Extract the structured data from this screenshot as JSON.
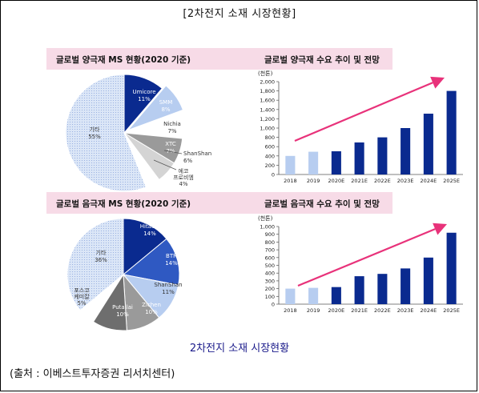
{
  "page": {
    "top_title": "[2차전지 소재 시장현황]",
    "caption": "2차전지 소재 시장현황",
    "source": "(출처 : 이베스트투자증권 리서치센터)"
  },
  "colors": {
    "band_bg": "#f7dbe7",
    "navy": "#0a2a8f",
    "light_blue": "#b7cdf0",
    "pale_blue": "#dbe6f7",
    "gray": "#9a9a9a",
    "dark_gray": "#6e6e6e",
    "arrow": "#e8327a",
    "caption_blue": "#1a1a8a"
  },
  "panels": {
    "cathode_share_title": "글로벌 양극재 MS 현황(2020 기준)",
    "cathode_demand_title": "글로벌 양극재 수요 추이 및 전망",
    "anode_share_title": "글로벌 음극재 MS 현황(2020 기준)",
    "anode_demand_title": "글로벌 음극재 수요 추이 및 전망"
  },
  "chart_data": [
    {
      "type": "pie",
      "id": "cathode-share",
      "title": "글로벌 양극재 MS 현황(2020 기준)",
      "slices": [
        {
          "label": "Umicore",
          "value": 11,
          "value_label": "11%",
          "fill": "#0a2a8f",
          "text_color": "#ffffff"
        },
        {
          "label": "SMM",
          "value": 8,
          "value_label": "8%",
          "fill": "#b7cdf0",
          "text_color": "#ffffff"
        },
        {
          "label": "Nichia",
          "value": 7,
          "value_label": "7%",
          "fill": "#ffffff",
          "text_color": "#333333"
        },
        {
          "label": "XTC",
          "value": 7,
          "value_label": "7%",
          "fill": "#9a9a9a",
          "text_color": "#ffffff"
        },
        {
          "label": "ShanShan",
          "value": 6,
          "value_label": "6%",
          "fill": "#d4d4d4",
          "text_color": "#333333"
        },
        {
          "label": "에코프로비엠",
          "value": 4,
          "value_label": "4%",
          "fill": "#ffffff",
          "text_color": "#333333"
        },
        {
          "label": "기타",
          "value": 55,
          "value_label": "55%",
          "fill": "#dbe6f7",
          "text_color": "#333333"
        }
      ]
    },
    {
      "type": "bar",
      "id": "cathode-demand",
      "title": "글로벌 양극재 수요 추이 및 전망",
      "unit_label": "(천톤)",
      "categories": [
        "2018",
        "2019",
        "2020E",
        "2021E",
        "2022E",
        "2023E",
        "2024E",
        "2025E"
      ],
      "values": [
        400,
        490,
        500,
        690,
        800,
        1000,
        1310,
        1800
      ],
      "ylim": [
        0,
        2000
      ],
      "yticks": [
        "0",
        "200",
        "400",
        "600",
        "800",
        "1,000",
        "1,200",
        "1,400",
        "1,600",
        "1,800",
        "2,000"
      ],
      "actual_count": 2,
      "grid": false
    },
    {
      "type": "pie",
      "id": "anode-share",
      "title": "글로벌 음극재 MS 현황(2020 기준)",
      "slices": [
        {
          "label": "Hitachi",
          "value": 14,
          "value_label": "14%",
          "fill": "#0a2a8f",
          "text_color": "#ffffff"
        },
        {
          "label": "BTR",
          "value": 14,
          "value_label": "14%",
          "fill": "#2f59c2",
          "text_color": "#ffffff"
        },
        {
          "label": "ShanShan",
          "value": 11,
          "value_label": "11%",
          "fill": "#b7cdf0",
          "text_color": "#333333"
        },
        {
          "label": "Zichen",
          "value": 10,
          "value_label": "10%",
          "fill": "#9a9a9a",
          "text_color": "#ffffff"
        },
        {
          "label": "Putailai",
          "value": 10,
          "value_label": "10%",
          "fill": "#6e6e6e",
          "text_color": "#ffffff"
        },
        {
          "label": "포스코케미칼",
          "value": 5,
          "value_label": "5%",
          "fill": "#ffffff",
          "text_color": "#333333"
        },
        {
          "label": "기타",
          "value": 36,
          "value_label": "36%",
          "fill": "#dbe6f7",
          "text_color": "#333333"
        }
      ]
    },
    {
      "type": "bar",
      "id": "anode-demand",
      "title": "글로벌 음극재 수요 추이 및 전망",
      "unit_label": "(천톤)",
      "categories": [
        "2018",
        "2019",
        "2020E",
        "2021E",
        "2022E",
        "2023E",
        "2024E",
        "2025E"
      ],
      "values": [
        200,
        210,
        220,
        360,
        390,
        460,
        600,
        920
      ],
      "ylim": [
        0,
        1000
      ],
      "yticks": [
        "0",
        "100",
        "200",
        "300",
        "400",
        "500",
        "600",
        "700",
        "800",
        "900",
        "1,000"
      ],
      "actual_count": 2,
      "grid": false
    }
  ]
}
